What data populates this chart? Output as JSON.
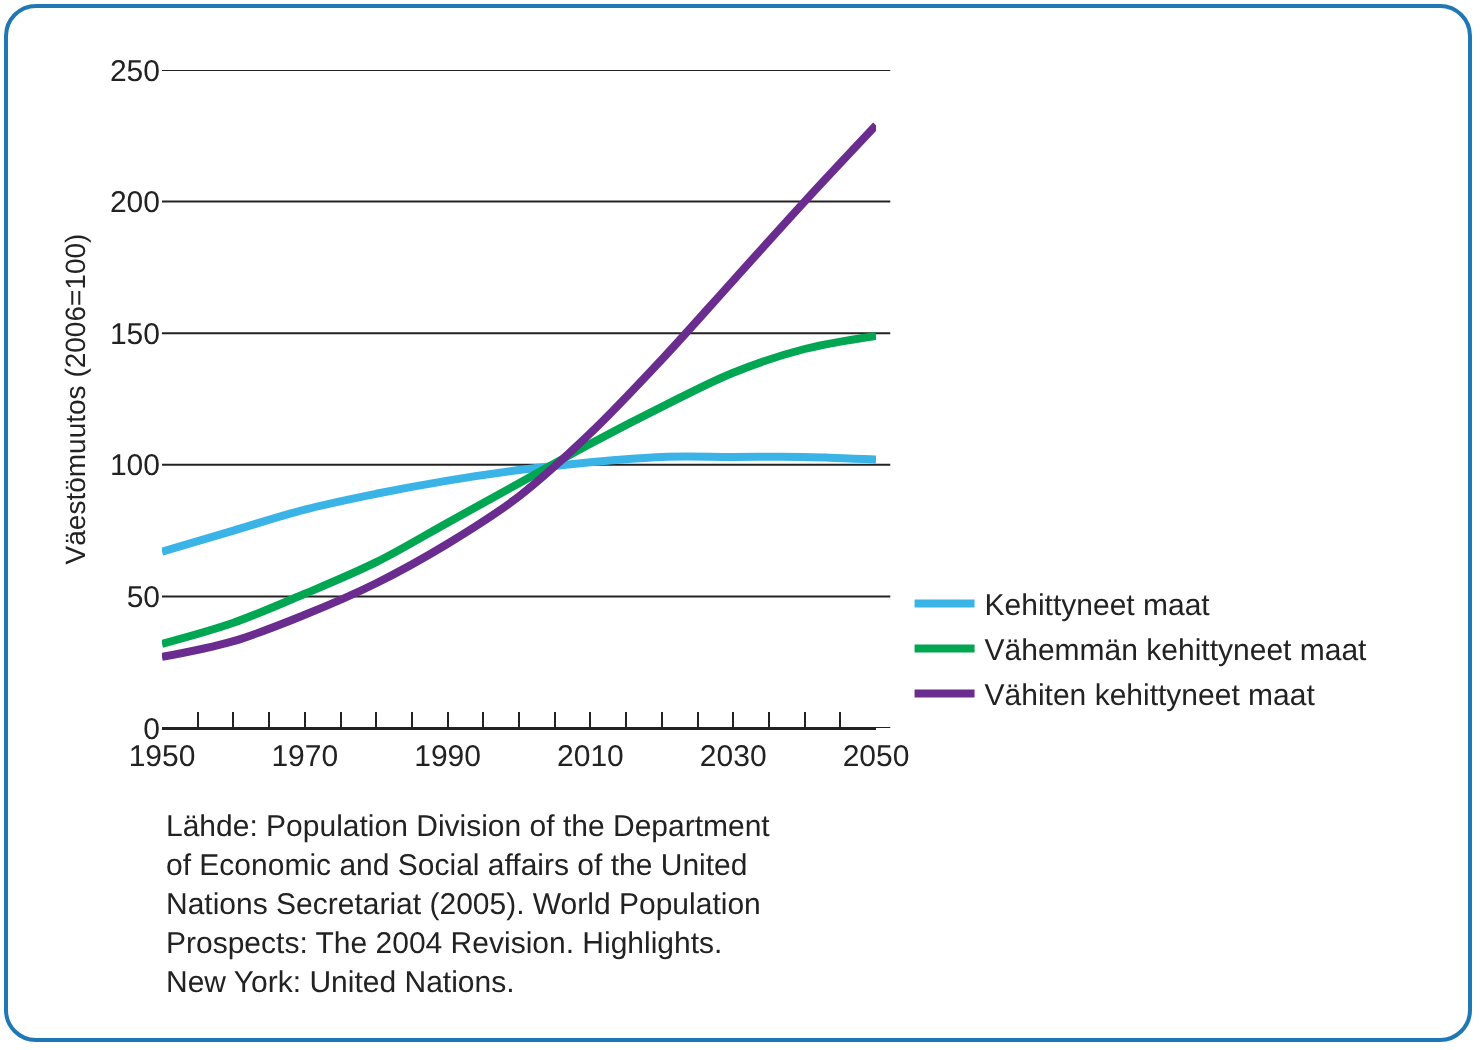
{
  "chart_data": {
    "type": "line",
    "ylabel": "Väestömuutos (2006=100)",
    "x": [
      1950,
      1960,
      1970,
      1980,
      1990,
      2000,
      2010,
      2020,
      2030,
      2040,
      2050
    ],
    "series": [
      {
        "name": "Kehittyneet maat",
        "color": "#3ab4e6",
        "values": [
          67,
          75,
          83,
          89,
          94,
          98,
          101,
          103,
          103,
          103,
          102
        ]
      },
      {
        "name": "Vähemmän kehittyneet maat",
        "color": "#00a651",
        "values": [
          32,
          40,
          51,
          63,
          78,
          93,
          108,
          122,
          135,
          144,
          149
        ]
      },
      {
        "name": "Vähiten kehittyneet maat",
        "color": "#6a2c8e",
        "values": [
          27,
          33,
          43,
          55,
          70,
          88,
          112,
          140,
          170,
          200,
          229
        ]
      }
    ],
    "xlim": [
      1950,
      2050
    ],
    "xticks": [
      1950,
      {
        "value": 1955,
        "label": null
      },
      {
        "value": 1960,
        "label": null
      },
      {
        "value": 1965,
        "label": null
      },
      1970,
      {
        "value": 1975,
        "label": null
      },
      {
        "value": 1980,
        "label": null
      },
      {
        "value": 1985,
        "label": null
      },
      1990,
      {
        "value": 1995,
        "label": null
      },
      {
        "value": 2000,
        "label": null
      },
      {
        "value": 2005,
        "label": null
      },
      2010,
      {
        "value": 2015,
        "label": null
      },
      {
        "value": 2020,
        "label": null
      },
      {
        "value": 2025,
        "label": null
      },
      2030,
      {
        "value": 2035,
        "label": null
      },
      {
        "value": 2040,
        "label": null
      },
      {
        "value": 2045,
        "label": null
      },
      2050
    ],
    "ylim": [
      0,
      250
    ],
    "yticks": [
      0,
      50,
      100,
      150,
      200,
      250
    ],
    "grid": "y",
    "legend": "right",
    "marker": "none",
    "line_style": "solid",
    "annotations": [
      "Lähde: Population Division of the Department\nof Economic and Social affairs of the United\nNations Secretariat (2005). World Population\nProspects: The 2004 Revision. Highlights.\nNew York: United Nations."
    ]
  }
}
